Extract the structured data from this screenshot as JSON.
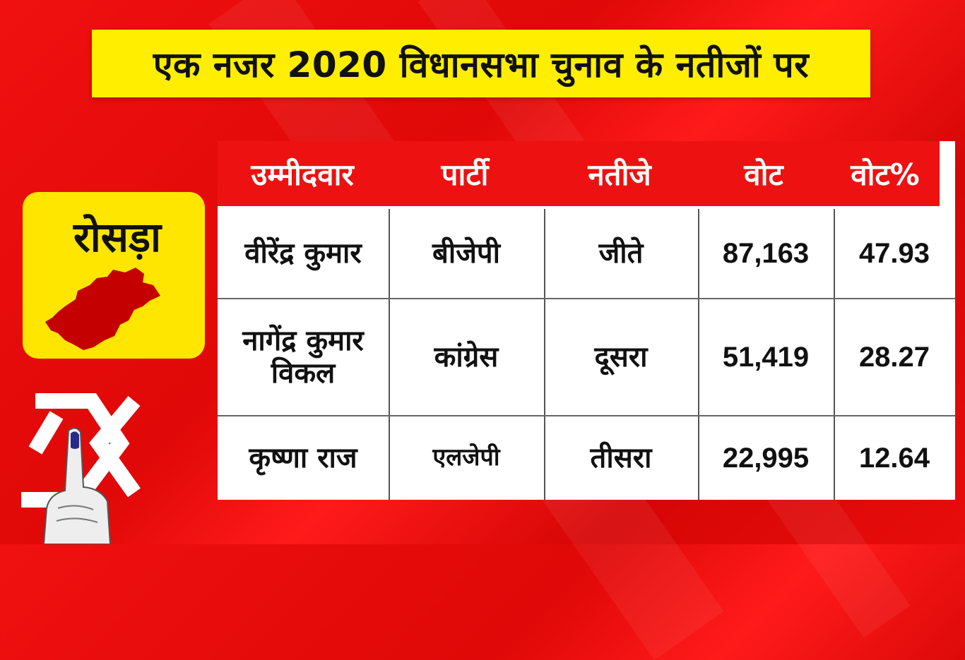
{
  "title": "एक नजर 2020 विधानसभा चुनाव के नतीजों पर",
  "constituency": {
    "name": "रोसड़ा"
  },
  "table": {
    "headers": [
      "उम्मीदवार",
      "पार्टी",
      "नतीजे",
      "वोट",
      "वोट%"
    ],
    "rows": [
      {
        "candidate": "वीरेंद्र कुमार",
        "party": "बीजेपी",
        "result": "जीते",
        "votes": "87,163",
        "vote_pct": "47.93"
      },
      {
        "candidate": "नागेंद्र कुमार विकल",
        "party": "कांग्रेस",
        "result": "दूसरा",
        "votes": "51,419",
        "vote_pct": "28.27"
      },
      {
        "candidate": "कृष्णा राज",
        "party": "एलजेपी",
        "result": "तीसरा",
        "votes": "22,995",
        "vote_pct": "12.64"
      }
    ]
  },
  "colors": {
    "background": "#e80c0c",
    "title_bar": "#ffee00",
    "header": "#ee1111",
    "card": "#ffe600",
    "map": "#c40000"
  },
  "icons": [
    "state-map-icon",
    "election-symbol-icon",
    "inked-finger-icon"
  ]
}
